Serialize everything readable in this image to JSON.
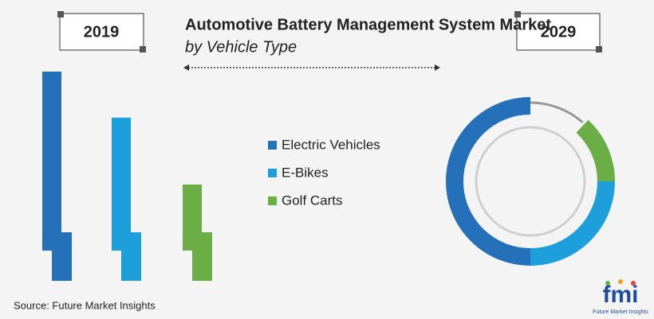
{
  "chart_data": [
    {
      "type": "bar",
      "label": "2019",
      "title": "Automotive Battery Management System Market",
      "subtitle": "by Vehicle Type",
      "categories": [
        "Electric Vehicles",
        "E-Bikes",
        "Golf Carts"
      ],
      "colors": [
        "#2470b9",
        "#1d9fdc",
        "#6aae45"
      ],
      "values": [
        100,
        78,
        46
      ]
    },
    {
      "type": "donut",
      "label": "2029",
      "categories": [
        "Electric Vehicles",
        "E-Bikes",
        "Golf Carts"
      ],
      "colors": [
        "#2470b9",
        "#1d9fdc",
        "#6aae45"
      ],
      "values": [
        50,
        25,
        13
      ]
    }
  ],
  "source": "Source: Future Market Insights",
  "logo": {
    "text": "fmi",
    "caption": "Future Market Insights"
  }
}
